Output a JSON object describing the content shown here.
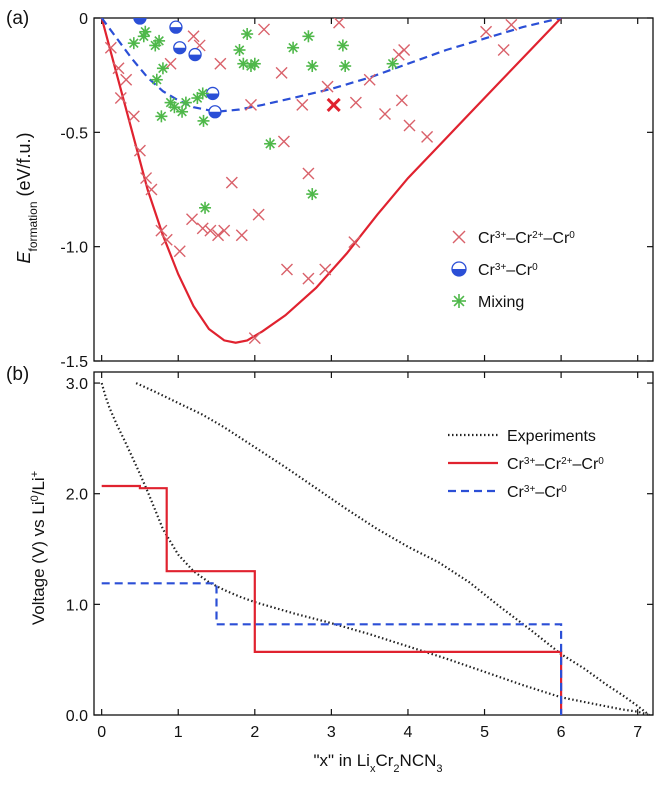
{
  "panels": {
    "a": {
      "label": "(a)"
    },
    "b": {
      "label": "(b)"
    }
  },
  "chart_data": [
    {
      "type": "scatter",
      "panel": "(a)",
      "ylabel_main": "E",
      "ylabel_sub": "formation",
      "ylabel_rest": " (eV/f.u.)",
      "xlim": [
        -0.1,
        7.2
      ],
      "ylim": [
        -1.5,
        0.0
      ],
      "xticks": [
        0,
        1,
        2,
        3,
        4,
        5,
        6,
        7
      ],
      "yticks": [
        0,
        -0.5,
        -1.0,
        -1.5
      ],
      "ytick_labels": [
        "0",
        "-0.5",
        "-1.0",
        "-1.5"
      ],
      "grid": false,
      "legend_position": "right",
      "legend": [
        {
          "key": "red",
          "pre": "Cr",
          "s1": "3+",
          "m1": "–Cr",
          "s2": "2+",
          "m2": "–Cr",
          "s3": "0"
        },
        {
          "key": "blue",
          "pre": "Cr",
          "s1": "3+",
          "m1": "–Cr",
          "s2": "0",
          "m2": "",
          "s3": ""
        },
        {
          "key": "green",
          "pre": "Mixing",
          "s1": "",
          "m1": "",
          "s2": "",
          "m2": "",
          "s3": ""
        }
      ],
      "series": [
        {
          "key": "red",
          "marker": "x",
          "color": "#d9616a",
          "points": [
            [
              0.12,
              -0.13
            ],
            [
              0.22,
              -0.22
            ],
            [
              0.25,
              -0.35
            ],
            [
              0.32,
              -0.27
            ],
            [
              0.42,
              -0.43
            ],
            [
              0.5,
              -0.58
            ],
            [
              0.58,
              -0.7
            ],
            [
              0.78,
              -0.93
            ],
            [
              0.85,
              -0.97
            ],
            [
              1.02,
              -1.02
            ],
            [
              1.18,
              -0.88
            ],
            [
              1.32,
              -0.92
            ],
            [
              1.42,
              -0.93
            ],
            [
              1.52,
              -0.95
            ],
            [
              1.6,
              -0.93
            ],
            [
              1.7,
              -0.72
            ],
            [
              1.83,
              -0.95
            ],
            [
              1.95,
              -0.38
            ],
            [
              2.05,
              -0.86
            ],
            [
              2.12,
              -0.05
            ],
            [
              2.35,
              -0.24
            ],
            [
              2.38,
              -0.54
            ],
            [
              2.42,
              -1.1
            ],
            [
              2.62,
              -0.38
            ],
            [
              2.7,
              -0.68
            ],
            [
              2.7,
              -1.14
            ],
            [
              2.92,
              -1.1
            ],
            [
              2.95,
              -0.3
            ],
            [
              3.1,
              -0.02
            ],
            [
              3.3,
              -0.98
            ],
            [
              3.32,
              -0.37
            ],
            [
              3.5,
              -0.27
            ],
            [
              3.7,
              -0.42
            ],
            [
              3.88,
              -0.16
            ],
            [
              3.92,
              -0.36
            ],
            [
              3.95,
              -0.14
            ],
            [
              4.02,
              -0.47
            ],
            [
              4.25,
              -0.52
            ],
            [
              5.02,
              -0.06
            ],
            [
              5.25,
              -0.14
            ],
            [
              5.35,
              -0.03
            ],
            [
              1.2,
              -0.08
            ],
            [
              1.28,
              -0.12
            ],
            [
              1.55,
              -0.2
            ],
            [
              2.0,
              -1.4
            ],
            [
              0.65,
              -0.75
            ],
            [
              0.9,
              -0.2
            ]
          ]
        },
        {
          "key": "redHighlight",
          "marker": "x-bold",
          "color": "#e0222f",
          "points": [
            [
              3.03,
              -0.38
            ]
          ]
        },
        {
          "key": "blue",
          "marker": "half-circle",
          "color": "#2b4fd6",
          "points": [
            [
              0.5,
              0.0
            ],
            [
              0.97,
              -0.04
            ],
            [
              1.02,
              -0.13
            ],
            [
              1.22,
              -0.16
            ],
            [
              1.45,
              -0.33
            ],
            [
              1.48,
              -0.41
            ]
          ]
        },
        {
          "key": "green",
          "marker": "asterisk",
          "color": "#4fb84a",
          "points": [
            [
              0.42,
              -0.11
            ],
            [
              0.55,
              -0.08
            ],
            [
              0.57,
              -0.06
            ],
            [
              0.7,
              -0.12
            ],
            [
              0.72,
              -0.27
            ],
            [
              0.75,
              -0.1
            ],
            [
              0.8,
              -0.22
            ],
            [
              0.78,
              -0.43
            ],
            [
              0.9,
              -0.37
            ],
            [
              0.95,
              -0.39
            ],
            [
              1.05,
              -0.41
            ],
            [
              1.1,
              -0.37
            ],
            [
              1.25,
              -0.35
            ],
            [
              1.32,
              -0.33
            ],
            [
              1.33,
              -0.45
            ],
            [
              1.35,
              -0.83
            ],
            [
              1.8,
              -0.14
            ],
            [
              1.85,
              -0.2
            ],
            [
              1.9,
              -0.07
            ],
            [
              1.95,
              -0.21
            ],
            [
              2.0,
              -0.2
            ],
            [
              2.2,
              -0.55
            ],
            [
              2.5,
              -0.13
            ],
            [
              2.7,
              -0.08
            ],
            [
              2.75,
              -0.21
            ],
            [
              2.75,
              -0.77
            ],
            [
              3.15,
              -0.12
            ],
            [
              3.18,
              -0.21
            ],
            [
              3.8,
              -0.2
            ]
          ]
        }
      ],
      "curves": [
        {
          "key": "redHull",
          "style": "solid",
          "color": "#e0222f",
          "x": [
            0.0,
            0.2,
            0.4,
            0.6,
            0.8,
            1.0,
            1.2,
            1.4,
            1.6,
            1.75,
            1.9,
            2.1,
            2.4,
            2.8,
            3.2,
            3.6,
            4.0,
            4.4,
            4.8,
            5.2,
            5.6,
            6.0
          ],
          "y": [
            0.0,
            -0.25,
            -0.5,
            -0.75,
            -0.95,
            -1.12,
            -1.26,
            -1.36,
            -1.41,
            -1.42,
            -1.41,
            -1.37,
            -1.3,
            -1.18,
            -1.03,
            -0.86,
            -0.7,
            -0.56,
            -0.42,
            -0.28,
            -0.14,
            0.0
          ]
        },
        {
          "key": "blueHull",
          "style": "dashed",
          "color": "#2b4fd6",
          "x": [
            0.0,
            0.2,
            0.4,
            0.6,
            0.8,
            1.0,
            1.2,
            1.5,
            1.8,
            2.1,
            2.5,
            3.0,
            3.5,
            4.0,
            4.5,
            5.0,
            5.5,
            6.0
          ],
          "y": [
            0.0,
            -0.09,
            -0.18,
            -0.26,
            -0.32,
            -0.36,
            -0.39,
            -0.41,
            -0.4,
            -0.38,
            -0.35,
            -0.31,
            -0.26,
            -0.2,
            -0.14,
            -0.09,
            -0.04,
            0.0
          ]
        }
      ]
    },
    {
      "type": "line",
      "panel": "(b)",
      "xlabel_pre": "\"x\" in Li",
      "xlabel_s1": "x",
      "xlabel_m1": "Cr",
      "xlabel_s2": "2",
      "xlabel_m2": "NCN",
      "xlabel_s3": "3",
      "ylabel_pre": "Voltage (V) vs Li",
      "ylabel_s1": "0",
      "ylabel_m1": "/Li",
      "ylabel_s2": "+",
      "xlim": [
        -0.1,
        7.2
      ],
      "ylim": [
        0.0,
        3.1
      ],
      "xticks": [
        0,
        1,
        2,
        3,
        4,
        5,
        6,
        7
      ],
      "xtick_labels": [
        "0",
        "1",
        "2",
        "3",
        "4",
        "5",
        "6",
        "7"
      ],
      "yticks": [
        0.0,
        1.0,
        2.0,
        3.0
      ],
      "ytick_labels": [
        "0.0",
        "1.0",
        "2.0",
        "3.0"
      ],
      "grid": false,
      "legend_position": "top-right",
      "legend": [
        {
          "key": "exp",
          "pre": "Experiments",
          "s1": "",
          "m1": "",
          "s2": "",
          "m2": "",
          "s3": ""
        },
        {
          "key": "red",
          "pre": "Cr",
          "s1": "3+",
          "m1": "–Cr",
          "s2": "2+",
          "m2": "–Cr",
          "s3": "0"
        },
        {
          "key": "blue",
          "pre": "Cr",
          "s1": "3+",
          "m1": "–Cr",
          "s2": "0",
          "m2": "",
          "s3": ""
        }
      ],
      "series": [
        {
          "key": "expDischarge",
          "style": "dotted",
          "color": "#222222",
          "x": [
            0.0,
            0.05,
            0.1,
            0.2,
            0.3,
            0.4,
            0.5,
            0.6,
            0.7,
            0.8,
            1.0,
            1.2,
            1.4,
            1.6,
            1.8,
            2.0,
            2.5,
            3.0,
            3.5,
            4.0,
            4.5,
            5.0,
            5.5,
            6.0,
            6.5,
            6.8,
            7.0,
            7.1,
            7.15
          ],
          "y": [
            3.0,
            2.88,
            2.78,
            2.62,
            2.48,
            2.33,
            2.18,
            2.02,
            1.85,
            1.68,
            1.45,
            1.3,
            1.2,
            1.13,
            1.07,
            1.02,
            0.92,
            0.83,
            0.73,
            0.62,
            0.51,
            0.39,
            0.27,
            0.16,
            0.09,
            0.05,
            0.03,
            0.01,
            0.0
          ]
        },
        {
          "key": "expCharge",
          "style": "dotted",
          "color": "#222222",
          "x": [
            0.45,
            0.7,
            1.0,
            1.3,
            1.6,
            2.0,
            2.4,
            2.8,
            3.2,
            3.6,
            4.0,
            4.4,
            4.8,
            5.2,
            5.6,
            6.0,
            6.3,
            6.6,
            6.8,
            7.0,
            7.15
          ],
          "y": [
            3.0,
            2.92,
            2.82,
            2.72,
            2.6,
            2.42,
            2.24,
            2.05,
            1.86,
            1.68,
            1.52,
            1.38,
            1.2,
            0.98,
            0.77,
            0.55,
            0.42,
            0.27,
            0.18,
            0.08,
            0.0
          ]
        },
        {
          "key": "red",
          "style": "solid",
          "color": "#e0222f",
          "x": [
            0.0,
            0.5,
            0.5,
            0.85,
            0.85,
            2.0,
            2.0,
            6.0,
            6.0
          ],
          "y": [
            2.07,
            2.07,
            2.05,
            2.05,
            1.3,
            1.3,
            0.57,
            0.57,
            0.0
          ]
        },
        {
          "key": "blue",
          "style": "dashed",
          "color": "#2b4fd6",
          "x": [
            0.0,
            1.5,
            1.5,
            6.0,
            6.0
          ],
          "y": [
            1.19,
            1.19,
            0.82,
            0.82,
            0.0
          ]
        }
      ]
    }
  ]
}
